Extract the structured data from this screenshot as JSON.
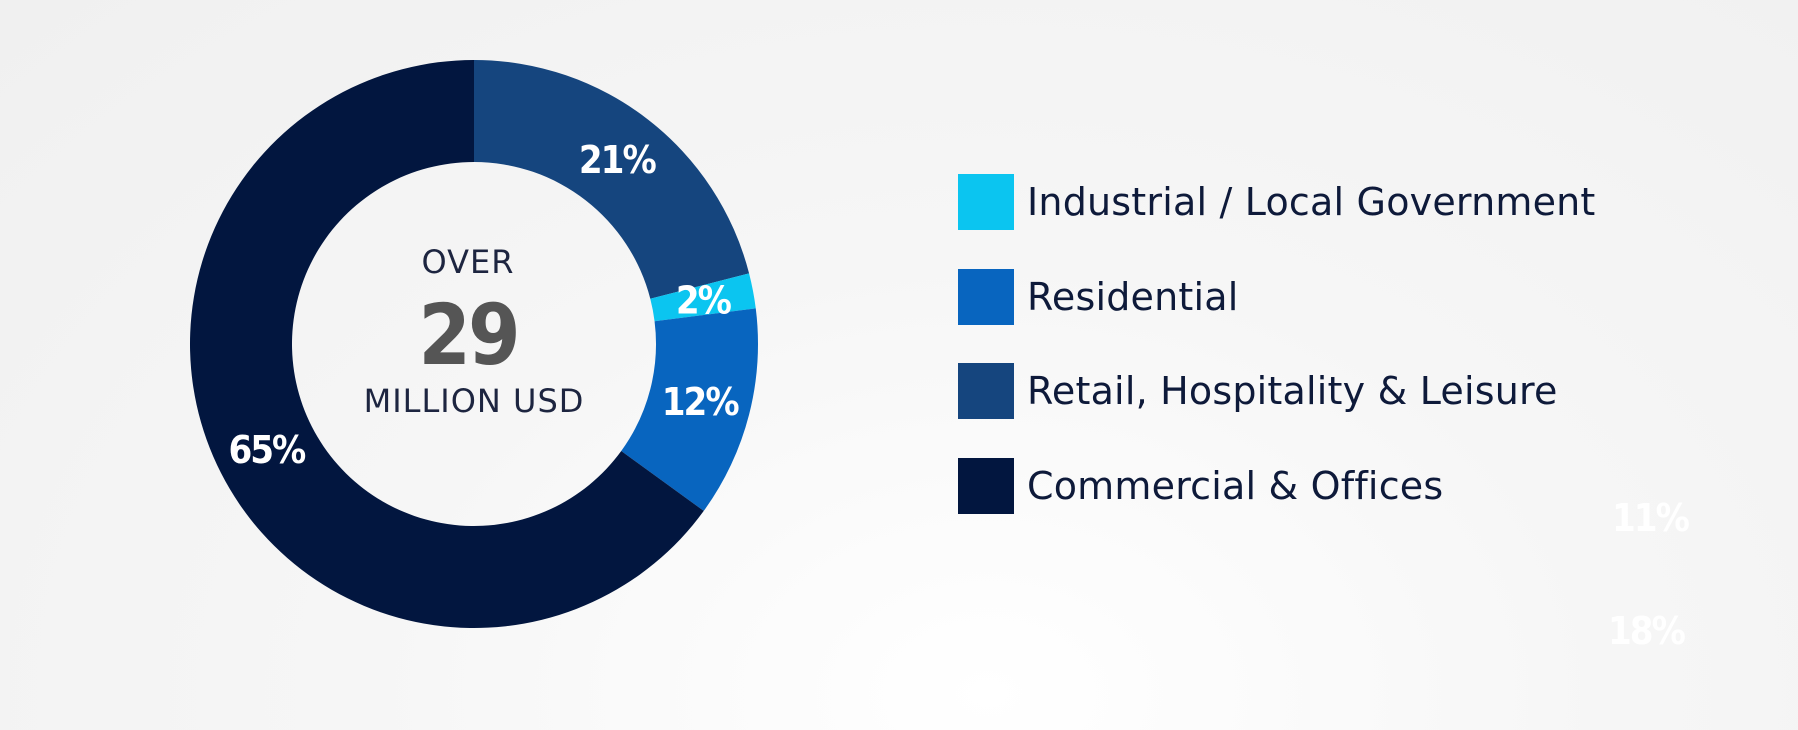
{
  "chart_data": {
    "type": "donut",
    "center": {
      "line1": "OVER",
      "value": "29",
      "line3": "MILLION USD"
    },
    "series": [
      {
        "name": "Retail, Hospitality & Leisure",
        "value": 21,
        "label": "21%",
        "color": "#15457e"
      },
      {
        "name": "Industrial / Local Government",
        "value": 2,
        "label": "2%",
        "color": "#0bc5f0"
      },
      {
        "name": "Residential",
        "value": 12,
        "label": "12%",
        "color": "#0865bf"
      },
      {
        "name": "Commercial & Offices",
        "value": 65,
        "label": "65%",
        "color": "#02163f"
      }
    ],
    "legend": [
      {
        "label": "Industrial / Local Government",
        "color": "#0bc5f0"
      },
      {
        "label": "Residential",
        "color": "#0865bf"
      },
      {
        "label": "Retail, Hospitality & Leisure",
        "color": "#15457e"
      },
      {
        "label": "Commercial & Offices",
        "color": "#02163f"
      }
    ],
    "legend_position": "right",
    "stray_labels": [
      "11%",
      "18%"
    ]
  }
}
